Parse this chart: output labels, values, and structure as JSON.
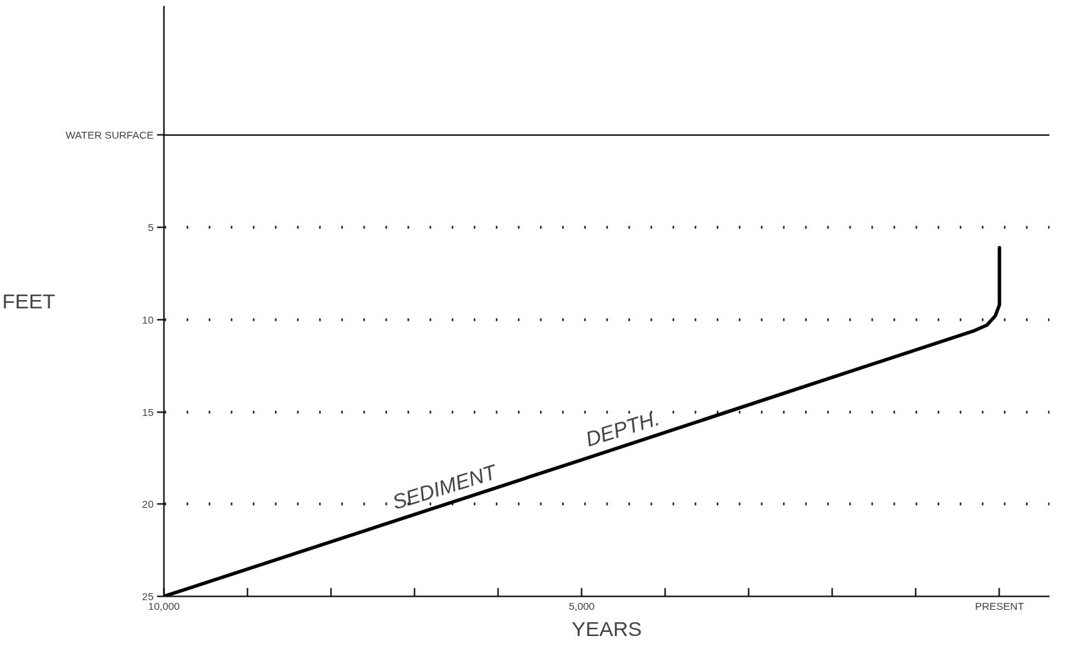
{
  "chart_data": {
    "type": "line",
    "xlabel": "YEARS",
    "ylabel": "FEET",
    "x": [
      10000,
      5000,
      300,
      150,
      50,
      0,
      0,
      0
    ],
    "series": [
      {
        "color": "#000000",
        "values": [
          25,
          17.6,
          10.6,
          10.3,
          9.8,
          9.2,
          8,
          6.1
        ]
      }
    ],
    "xlim": [
      10000,
      -600
    ],
    "xticks": [
      {
        "value": 10000,
        "label": "10,000"
      },
      {
        "value": 9000,
        "label": null
      },
      {
        "value": 8000,
        "label": null
      },
      {
        "value": 7000,
        "label": null
      },
      {
        "value": 6000,
        "label": null
      },
      {
        "value": 5000,
        "label": "5,000"
      },
      {
        "value": 4000,
        "label": null
      },
      {
        "value": 3000,
        "label": null
      },
      {
        "value": 2000,
        "label": null
      },
      {
        "value": 1000,
        "label": null
      },
      {
        "value": 0,
        "label": "PRESENT"
      }
    ],
    "ylim": [
      25,
      -7
    ],
    "yticks": [
      5,
      10,
      15,
      20,
      25
    ],
    "ref_lines": [
      {
        "axis": "y",
        "value": 0,
        "label": "WATER SURFACE",
        "color": "#000000",
        "line_style": "solid"
      }
    ],
    "annotations": [
      "SEDIMENT",
      "DEPTH."
    ],
    "grid": "y",
    "line_style": "solid",
    "marker": "none"
  }
}
